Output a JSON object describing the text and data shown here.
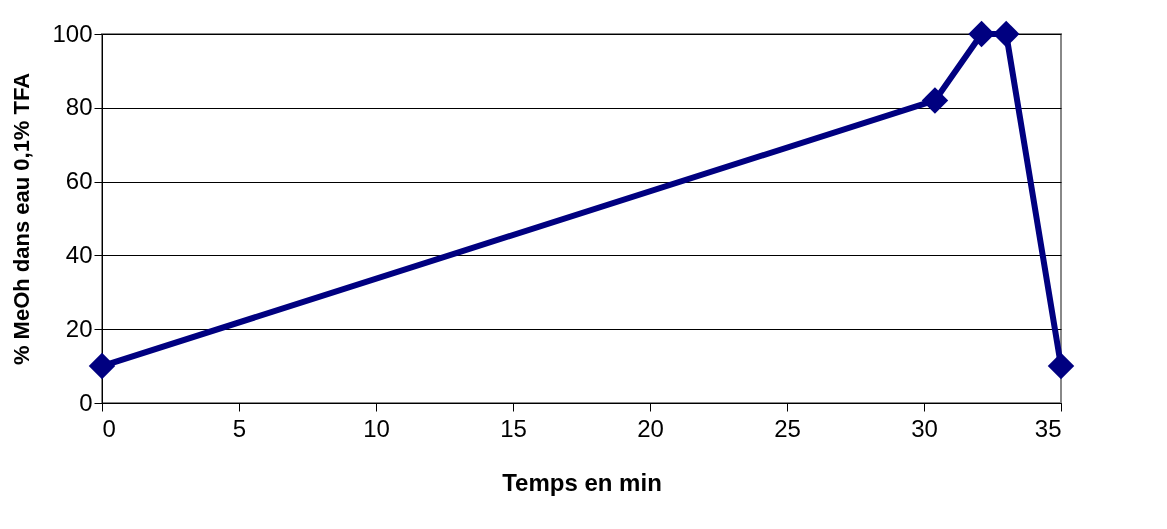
{
  "chart_data": {
    "type": "line",
    "xlabel": "Temps en min",
    "ylabel": "% MeOh dans eau 0,1% TFA",
    "x": [
      0,
      30.4,
      32.1,
      33,
      35
    ],
    "series": [
      {
        "color": "#000080",
        "values": [
          10,
          82,
          100,
          100,
          10
        ]
      }
    ],
    "xlim": [
      0,
      35
    ],
    "xticks": [
      0,
      5,
      10,
      15,
      20,
      25,
      30,
      35
    ],
    "ylim": [
      0,
      100
    ],
    "yticks": [
      0,
      20,
      40,
      60,
      80,
      100
    ],
    "grid": "y",
    "marker": "diamond",
    "line_style": "solid",
    "legend": false
  }
}
